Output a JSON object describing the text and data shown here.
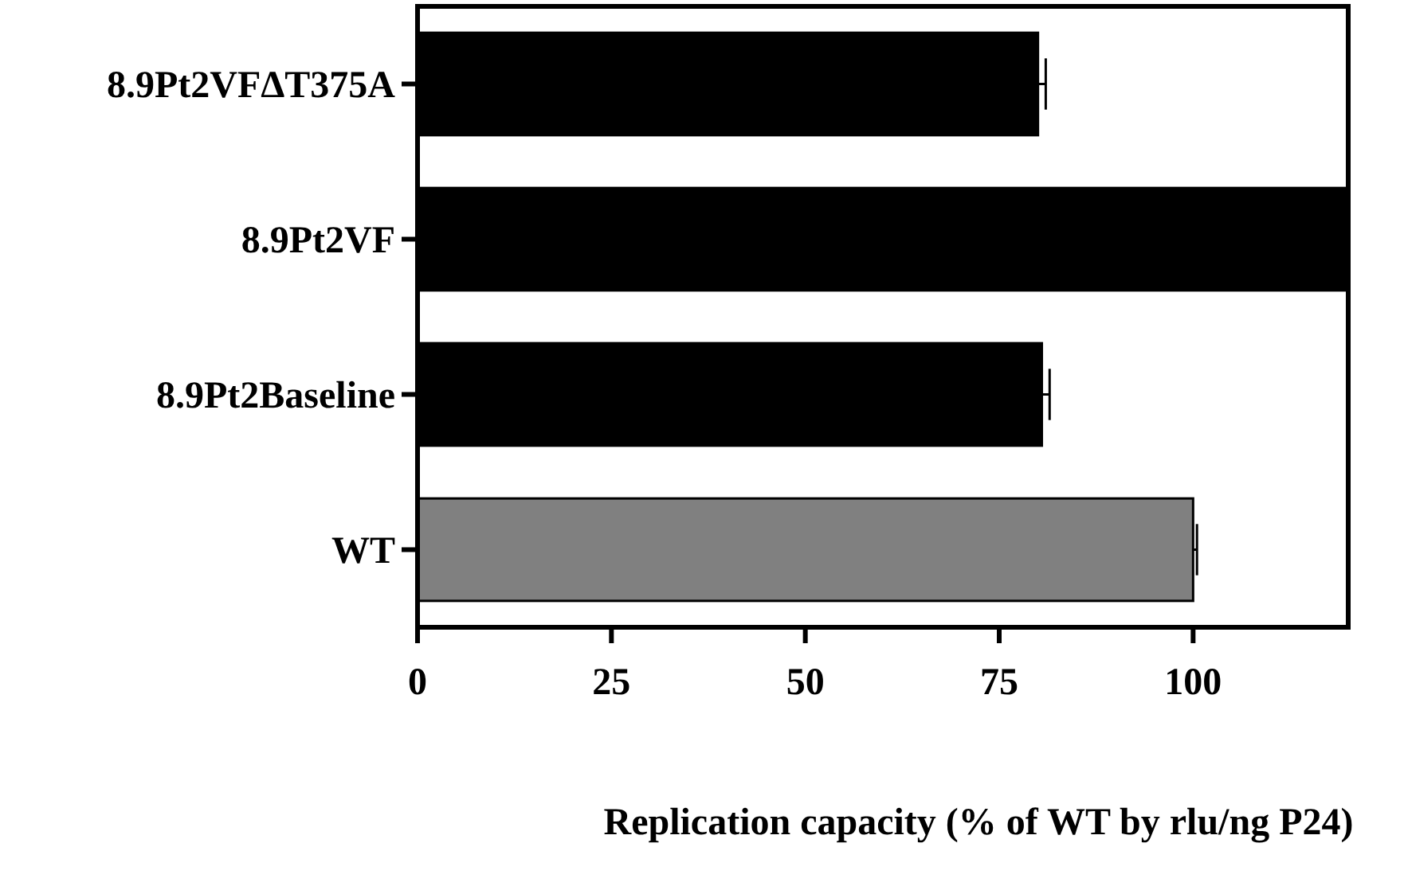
{
  "chart_data": {
    "type": "bar",
    "orientation": "horizontal",
    "categories": [
      "8.9Pt2VFΔT375A",
      "8.9Pt2VF",
      "8.9Pt2Baseline",
      "WT"
    ],
    "values": [
      80,
      120,
      80.5,
      100
    ],
    "errors": [
      [
        80,
        81
      ],
      null,
      [
        80.5,
        81.5
      ],
      [
        100,
        100.5
      ]
    ],
    "colors": [
      "#000000",
      "#000000",
      "#000000",
      "#808080"
    ],
    "xlim": [
      0,
      120
    ],
    "xticks": [
      0,
      25,
      50,
      75,
      100
    ],
    "xlabel": "Replication capacity (% of WT by rlu/ng P24)",
    "grid": false
  }
}
